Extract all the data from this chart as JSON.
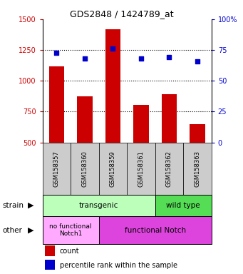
{
  "title": "GDS2848 / 1424789_at",
  "samples": [
    "GSM158357",
    "GSM158360",
    "GSM158359",
    "GSM158361",
    "GSM158362",
    "GSM158363"
  ],
  "counts": [
    1120,
    875,
    1420,
    805,
    890,
    650
  ],
  "percentiles": [
    73,
    68,
    76,
    68,
    69,
    66
  ],
  "ylim_left": [
    500,
    1500
  ],
  "ylim_right": [
    0,
    100
  ],
  "yticks_left": [
    500,
    750,
    1000,
    1250,
    1500
  ],
  "yticks_right": [
    0,
    25,
    50,
    75,
    100
  ],
  "bar_color": "#cc0000",
  "dot_color": "#0000cc",
  "transgenic_color": "#bbffbb",
  "wildtype_color": "#55dd55",
  "nofunc_color": "#ffaaff",
  "func_color": "#dd44dd",
  "tick_color_left": "#cc0000",
  "tick_color_right": "#0000cc",
  "background_color": "#ffffff",
  "legend_count_label": "count",
  "legend_pct_label": "percentile rank within the sample"
}
